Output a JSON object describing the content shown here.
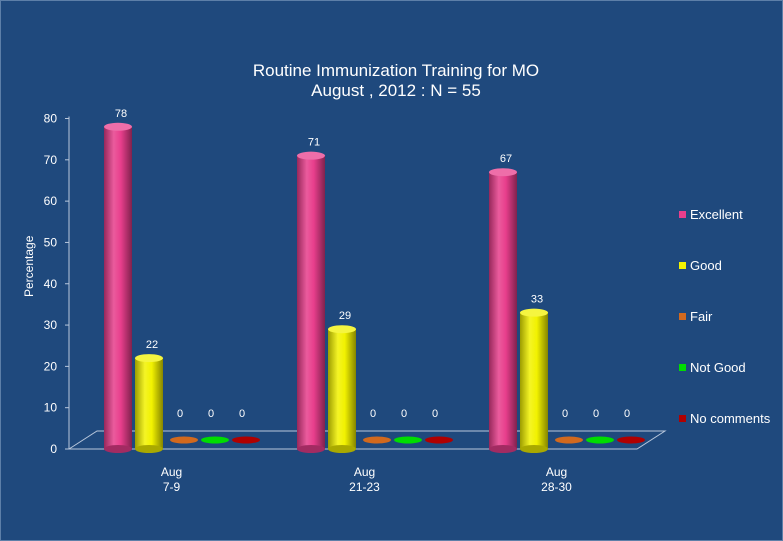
{
  "chart_data": {
    "type": "bar",
    "title": "Routine Immunization Training for MO",
    "subtitle": "August , 2012 : N = 55",
    "ylabel": "Percentage",
    "xlabel": "",
    "ylim": [
      0,
      80
    ],
    "yticks": [
      0,
      10,
      20,
      30,
      40,
      50,
      60,
      70,
      80
    ],
    "categories": [
      {
        "line1": "Aug",
        "line2": "7-9"
      },
      {
        "line1": "Aug",
        "line2": "21-23"
      },
      {
        "line1": "Aug",
        "line2": "28-30"
      }
    ],
    "series": [
      {
        "name": "Excellent",
        "color": "#e83e8c",
        "values": [
          78,
          71,
          67
        ]
      },
      {
        "name": "Good",
        "color": "#f2f200",
        "values": [
          22,
          29,
          33
        ]
      },
      {
        "name": "Fair",
        "color": "#d2691e",
        "values": [
          0,
          0,
          0
        ]
      },
      {
        "name": "Not Good",
        "color": "#00dd00",
        "values": [
          0,
          0,
          0
        ]
      },
      {
        "name": "No comments",
        "color": "#b00000",
        "values": [
          0,
          0,
          0
        ]
      }
    ],
    "legend_position": "right",
    "grid": false,
    "background_color": "#1f497d"
  }
}
